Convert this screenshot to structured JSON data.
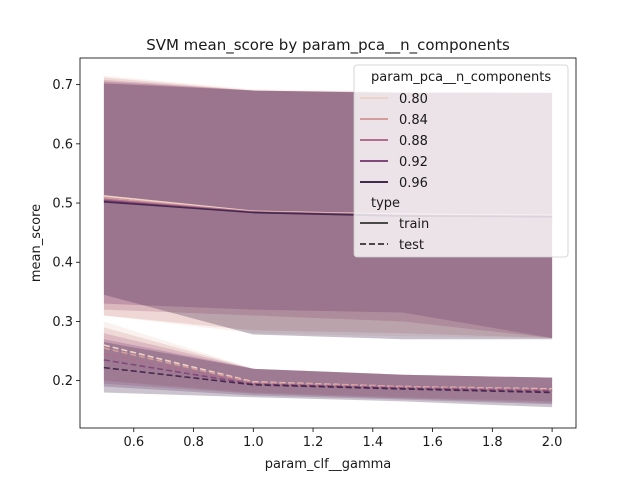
{
  "chart_data": {
    "type": "line",
    "title": "SVM mean_score by param_pca__n_components",
    "xlabel": "param_clf__gamma",
    "ylabel": "mean_score",
    "xlim": [
      0.42,
      2.08
    ],
    "ylim": [
      0.12,
      0.745
    ],
    "x_ticks": [
      0.6,
      0.8,
      1.0,
      1.2,
      1.4,
      1.6,
      1.8,
      2.0
    ],
    "x_tick_labels": [
      "0.6",
      "0.8",
      "1.0",
      "1.2",
      "1.4",
      "1.6",
      "1.8",
      "2.0"
    ],
    "y_ticks": [
      0.2,
      0.3,
      0.4,
      0.5,
      0.6,
      0.7
    ],
    "y_tick_labels": [
      "0.2",
      "0.3",
      "0.4",
      "0.5",
      "0.6",
      "0.7"
    ],
    "x": [
      0.5,
      1.0,
      1.5,
      2.0
    ],
    "grid": false,
    "legend": {
      "placement": "top-right",
      "hue_title": "param_pca__n_components",
      "hue_entries": [
        {
          "label": "0.80",
          "color": "#edd2c7"
        },
        {
          "label": "0.84",
          "color": "#d49c9b"
        },
        {
          "label": "0.88",
          "color": "#b06d8c"
        },
        {
          "label": "0.92",
          "color": "#82487a"
        },
        {
          "label": "0.96",
          "color": "#452a4f"
        }
      ],
      "style_title": "type",
      "style_entries": [
        {
          "label": "train",
          "dash": "solid"
        },
        {
          "label": "test",
          "dash": "dashed"
        }
      ]
    },
    "series": [
      {
        "hue": "0.80",
        "type": "train",
        "color": "#edd2c7",
        "values": [
          0.512,
          0.486,
          0.481,
          0.479
        ],
        "ci_low": [
          0.31,
          0.28,
          0.275,
          0.272
        ],
        "ci_high": [
          0.715,
          0.692,
          0.688,
          0.687
        ]
      },
      {
        "hue": "0.84",
        "type": "train",
        "color": "#d49c9b",
        "values": [
          0.509,
          0.485,
          0.48,
          0.478
        ],
        "ci_low": [
          0.31,
          0.285,
          0.28,
          0.272
        ],
        "ci_high": [
          0.712,
          0.69,
          0.687,
          0.686
        ]
      },
      {
        "hue": "0.88",
        "type": "train",
        "color": "#b06d8c",
        "values": [
          0.506,
          0.485,
          0.479,
          0.478
        ],
        "ci_low": [
          0.32,
          0.31,
          0.3,
          0.272
        ],
        "ci_high": [
          0.708,
          0.69,
          0.687,
          0.686
        ]
      },
      {
        "hue": "0.92",
        "type": "train",
        "color": "#82487a",
        "values": [
          0.504,
          0.484,
          0.479,
          0.477
        ],
        "ci_low": [
          0.33,
          0.32,
          0.315,
          0.272
        ],
        "ci_high": [
          0.705,
          0.69,
          0.686,
          0.686
        ]
      },
      {
        "hue": "0.96",
        "type": "train",
        "color": "#452a4f",
        "values": [
          0.502,
          0.484,
          0.478,
          0.477
        ],
        "ci_low": [
          0.345,
          0.278,
          0.27,
          0.27
        ],
        "ci_high": [
          0.702,
          0.69,
          0.686,
          0.686
        ]
      },
      {
        "hue": "0.80",
        "type": "test",
        "color": "#edd2c7",
        "values": [
          0.26,
          0.198,
          0.19,
          0.186
        ],
        "ci_low": [
          0.2,
          0.178,
          0.17,
          0.165
        ],
        "ci_high": [
          0.3,
          0.22,
          0.21,
          0.205
        ]
      },
      {
        "hue": "0.84",
        "type": "test",
        "color": "#d49c9b",
        "values": [
          0.255,
          0.197,
          0.19,
          0.185
        ],
        "ci_low": [
          0.2,
          0.18,
          0.172,
          0.165
        ],
        "ci_high": [
          0.29,
          0.22,
          0.21,
          0.205
        ]
      },
      {
        "hue": "0.88",
        "type": "test",
        "color": "#b06d8c",
        "values": [
          0.245,
          0.195,
          0.188,
          0.184
        ],
        "ci_low": [
          0.195,
          0.178,
          0.17,
          0.162
        ],
        "ci_high": [
          0.28,
          0.22,
          0.21,
          0.205
        ]
      },
      {
        "hue": "0.92",
        "type": "test",
        "color": "#82487a",
        "values": [
          0.235,
          0.194,
          0.187,
          0.182
        ],
        "ci_low": [
          0.19,
          0.175,
          0.168,
          0.16
        ],
        "ci_high": [
          0.27,
          0.22,
          0.21,
          0.205
        ]
      },
      {
        "hue": "0.96",
        "type": "test",
        "color": "#452a4f",
        "values": [
          0.222,
          0.193,
          0.186,
          0.18
        ],
        "ci_low": [
          0.18,
          0.172,
          0.165,
          0.155
        ],
        "ci_high": [
          0.265,
          0.22,
          0.21,
          0.205
        ]
      }
    ]
  }
}
